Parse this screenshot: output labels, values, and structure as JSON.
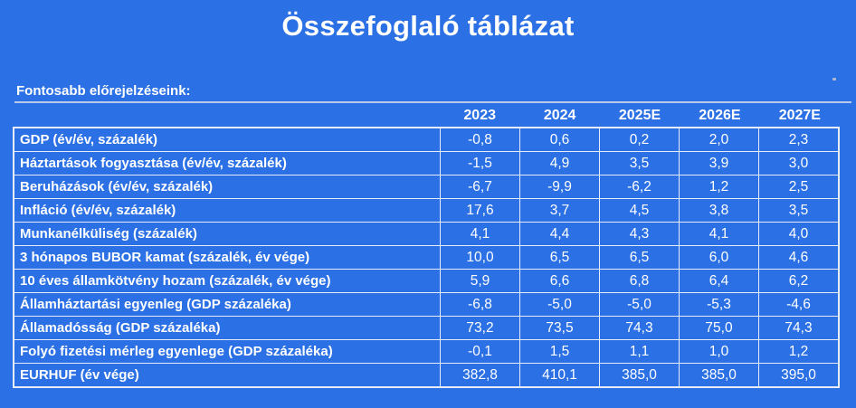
{
  "colors": {
    "background": "#2b70e4",
    "grid_border": "#e7ecf7",
    "text": "#ffffff",
    "rule": "#c9d4ea"
  },
  "chart_data": {
    "type": "table",
    "title": "Összefoglaló táblázat",
    "subtitle": "Fontosabb előrejelzéseink:",
    "columns": [
      "2023",
      "2024",
      "2025E",
      "2026E",
      "2027E"
    ],
    "rows": [
      {
        "label": "GDP (év/év, százalék)",
        "values": [
          "-0,8",
          "0,6",
          "0,2",
          "2,0",
          "2,3"
        ]
      },
      {
        "label": "Háztartások fogyasztása (év/év, százalék)",
        "values": [
          "-1,5",
          "4,9",
          "3,5",
          "3,9",
          "3,0"
        ]
      },
      {
        "label": "Beruházások (év/év, százalék)",
        "values": [
          "-6,7",
          "-9,9",
          "-6,2",
          "1,2",
          "2,5"
        ]
      },
      {
        "label": "Infláció (év/év, százalék)",
        "values": [
          "17,6",
          "3,7",
          "4,5",
          "3,8",
          "3,5"
        ]
      },
      {
        "label": "Munkanélküliség (százalék)",
        "values": [
          "4,1",
          "4,4",
          "4,3",
          "4,1",
          "4,0"
        ]
      },
      {
        "label": "3 hónapos BUBOR kamat (százalék, év vége)",
        "values": [
          "10,0",
          "6,5",
          "6,5",
          "6,0",
          "4,6"
        ]
      },
      {
        "label": "10 éves államkötvény hozam (százalék, év vége)",
        "values": [
          "5,9",
          "6,6",
          "6,8",
          "6,4",
          "6,2"
        ]
      },
      {
        "label": "Államháztartási egyenleg (GDP százaléka)",
        "values": [
          "-6,8",
          "-5,0",
          "-5,0",
          "-5,3",
          "-4,6"
        ]
      },
      {
        "label": "Államadósság (GDP százaléka)",
        "values": [
          "73,2",
          "73,5",
          "74,3",
          "75,0",
          "74,3"
        ]
      },
      {
        "label": "Folyó fizetési mérleg egyenlege (GDP százaléka)",
        "values": [
          "-0,1",
          "1,5",
          "1,1",
          "1,0",
          "1,2"
        ]
      },
      {
        "label": "EURHUF (év vége)",
        "values": [
          "382,8",
          "410,1",
          "385,0",
          "385,0",
          "395,0"
        ]
      }
    ]
  }
}
